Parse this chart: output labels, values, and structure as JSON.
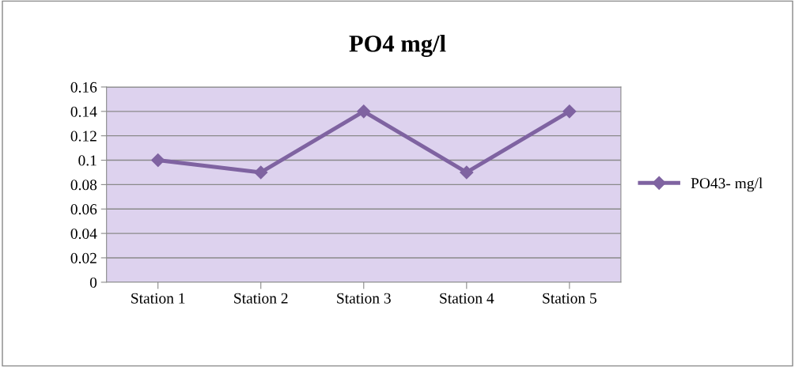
{
  "chart_data": {
    "type": "line",
    "title": "PO4 mg/l",
    "categories": [
      "Station 1",
      "Station 2",
      "Station 3",
      "Station 4",
      "Station 5"
    ],
    "series": [
      {
        "name": "PO43- mg/l",
        "color": "#7f63a1",
        "values": [
          0.1,
          0.09,
          0.14,
          0.09,
          0.14
        ]
      }
    ],
    "ylim": [
      0,
      0.16
    ],
    "yticks": [
      0,
      0.02,
      0.04,
      0.06,
      0.08,
      0.1,
      0.12,
      0.14,
      0.16
    ],
    "grid": "y",
    "legend": "right",
    "marker": "diamond",
    "line_style": "solid"
  }
}
